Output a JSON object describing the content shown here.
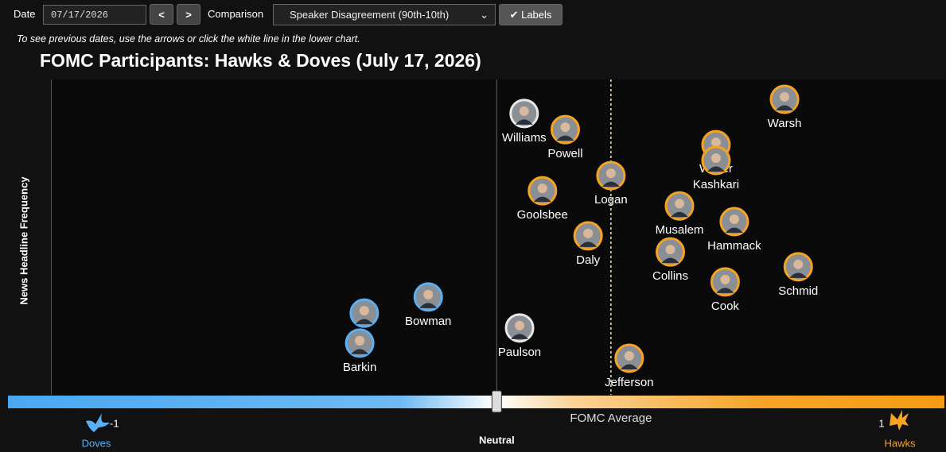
{
  "controls": {
    "date_label": "Date",
    "date_value": "07/17/2026",
    "prev_button": "<",
    "next_button": ">",
    "comparison_label": "Comparison",
    "comparison_value": "Speaker Disagreement (90th-10th)",
    "labels_button": "Labels",
    "note": "To see previous dates, use the arrows or click the white line in the lower chart."
  },
  "chart_data": {
    "type": "scatter",
    "title": "FOMC Participants: Hawks & Doves (July 17, 2026)",
    "y_label": "News Headline Frequency",
    "labels": [
      "Warsh",
      "Williams",
      "Powell",
      "Waller",
      "Kashkari",
      "Logan",
      "Goolsbee",
      "Musalem",
      "Hammack",
      "Daly",
      "Collins",
      "Schmid",
      "Cook",
      "Bowman",
      null,
      "Paulson",
      "Barkin",
      "Jefferson"
    ],
    "x": [
      0.63,
      0.06,
      0.15,
      0.48,
      0.48,
      0.25,
      0.1,
      0.4,
      0.52,
      0.2,
      0.38,
      0.66,
      0.5,
      -0.15,
      -0.29,
      0.05,
      -0.3,
      0.29
    ],
    "values": [
      93.7,
      89.2,
      84.1,
      79.3,
      74.3,
      69.5,
      64.7,
      59.9,
      54.9,
      50.4,
      45.3,
      40.6,
      35.8,
      31,
      25.9,
      21.2,
      16.4,
      11.6
    ],
    "xlim": [
      -1.07,
      0.98
    ],
    "ylim": [
      0,
      100
    ],
    "average": 0.25,
    "average_label": "FOMC Average",
    "dove_color": "#5ab0f2",
    "hawk_color": "#f5a321",
    "scale_labels": {
      "low": "-1",
      "low_name": "Doves",
      "mid_name": "Neutral",
      "high": "1",
      "high_name": "Hawks"
    }
  }
}
